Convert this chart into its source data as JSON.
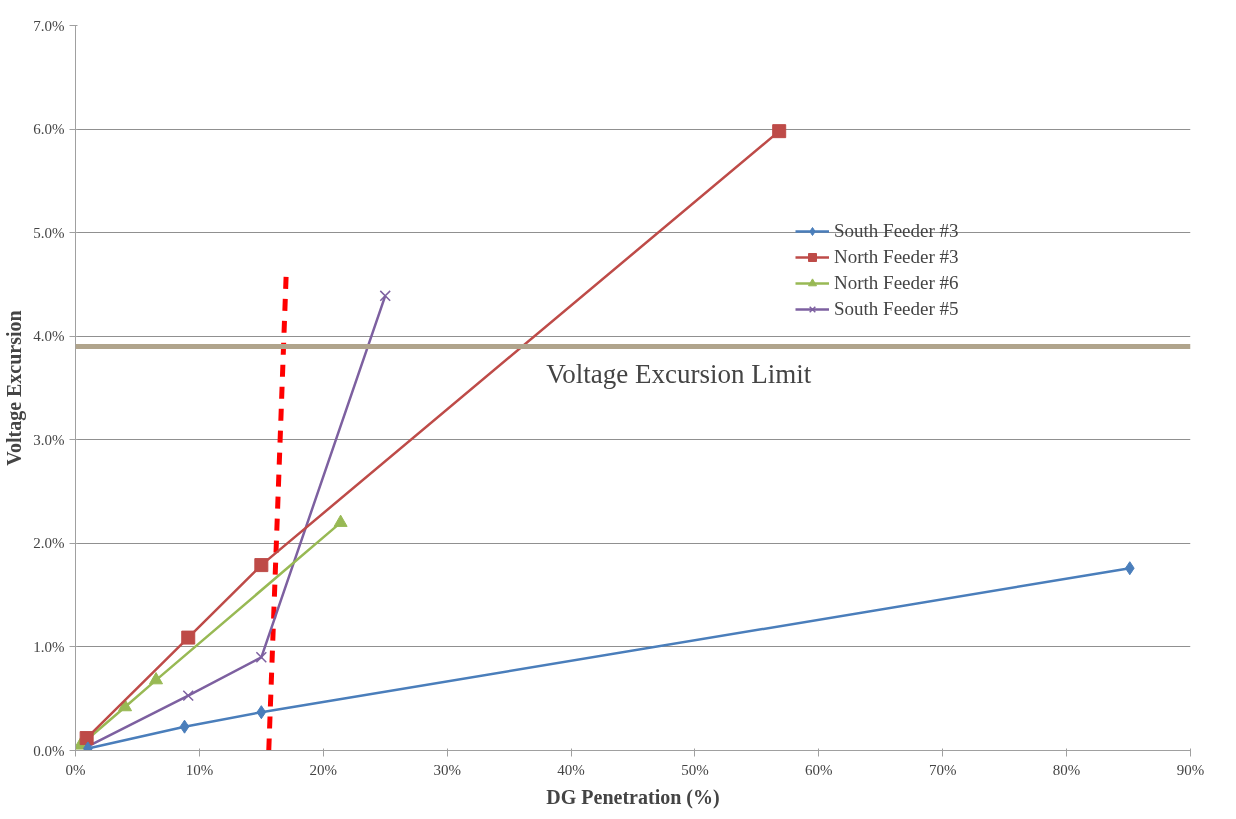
{
  "chart_data": {
    "type": "line",
    "xlabel": "DG Penetration (%)",
    "ylabel": "Voltage Excursion",
    "xlim": [
      0,
      90
    ],
    "ylim": [
      0,
      7
    ],
    "xticks": [
      {
        "value": 0,
        "label": "0%"
      },
      {
        "value": 10,
        "label": "10%"
      },
      {
        "value": 20,
        "label": "20%"
      },
      {
        "value": 30,
        "label": "30%"
      },
      {
        "value": 40,
        "label": "40%"
      },
      {
        "value": 50,
        "label": "50%"
      },
      {
        "value": 60,
        "label": "60%"
      },
      {
        "value": 70,
        "label": "70%"
      },
      {
        "value": 80,
        "label": "80%"
      },
      {
        "value": 90,
        "label": "90%"
      }
    ],
    "yticks": [
      {
        "value": 0,
        "label": "0.0%"
      },
      {
        "value": 1,
        "label": "1.0%"
      },
      {
        "value": 2,
        "label": "2.0%"
      },
      {
        "value": 3,
        "label": "3.0%"
      },
      {
        "value": 4,
        "label": "4.0%"
      },
      {
        "value": 5,
        "label": "5.0%"
      },
      {
        "value": 6,
        "label": "6.0%"
      },
      {
        "value": 7,
        "label": "7.0%"
      }
    ],
    "grid": "y",
    "legend": "right",
    "series": [
      {
        "name": "South Feeder #3",
        "color": "#4a7ebb",
        "marker": "diamond",
        "x": [
          1.0,
          8.8,
          15.0,
          85.1
        ],
        "values": [
          0.02,
          0.23,
          0.37,
          1.76
        ]
      },
      {
        "name": "North Feeder #3",
        "color": "#be4b48",
        "marker": "square",
        "x": [
          0.9,
          9.1,
          15.0,
          56.8
        ],
        "values": [
          0.12,
          1.09,
          1.79,
          5.98
        ]
      },
      {
        "name": "North Feeder #6",
        "color": "#98b954",
        "marker": "triangle",
        "x": [
          0.4,
          4.0,
          6.5,
          21.4
        ],
        "values": [
          0.05,
          0.42,
          0.68,
          2.2
        ]
      },
      {
        "name": "South Feeder #5",
        "color": "#7d60a0",
        "marker": "cross",
        "x": [
          1.0,
          9.1,
          15.0,
          25.0
        ],
        "values": [
          0.04,
          0.53,
          0.9,
          4.39
        ]
      },
      {
        "color": "#ff0000",
        "marker": "none",
        "line_style": "dashed",
        "x": [
          15.6,
          17.0
        ],
        "values": [
          0,
          4.58
        ]
      }
    ],
    "ref_lines": [
      {
        "axis": "y",
        "value": 3.9,
        "label": "Voltage Excursion Limit",
        "color": "#b0a48c"
      }
    ]
  }
}
